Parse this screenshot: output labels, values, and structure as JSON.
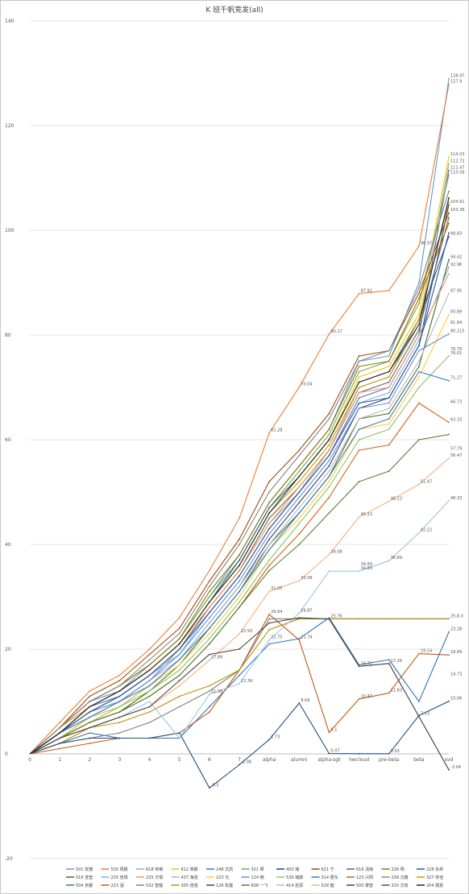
{
  "chart_data": {
    "type": "line",
    "title": "K 班千帆竞发(all)",
    "xlabel": "",
    "ylabel": "",
    "categories": [
      "0",
      "1",
      "2",
      "3",
      "4",
      "5",
      "6",
      "7",
      "alpha",
      "alumni",
      "alpha-sgt",
      "hwcloud",
      "pre-beta",
      "beta",
      "svd"
    ],
    "ylim": [
      -20,
      140
    ],
    "yticks": [
      -20,
      0,
      20,
      40,
      60,
      80,
      100,
      120,
      140
    ],
    "grid": true,
    "legend_position": "bottom",
    "series": [
      {
        "name": "501 安捷",
        "color": "#5b9bd5",
        "values": [
          0,
          5,
          10,
          12,
          17,
          22,
          30,
          38,
          48,
          55,
          62,
          75,
          76,
          90,
          128.97
        ]
      },
      {
        "name": "530 周鹏",
        "color": "#ed7d31",
        "values": [
          0,
          6,
          12,
          15,
          20,
          26,
          35,
          45,
          61.28,
          70.04,
          80.17,
          87.92,
          88.5,
          96.97,
          127.9
        ]
      },
      {
        "name": "618 林琳",
        "color": "#a5a5a5",
        "values": [
          0,
          4,
          8,
          10,
          14,
          20,
          28,
          35,
          44,
          50,
          58,
          70,
          72,
          82,
          112.72
        ]
      },
      {
        "name": "612 章鹏",
        "color": "#ffc000",
        "values": [
          0,
          5,
          9,
          12,
          16,
          21,
          29,
          36,
          46,
          53,
          60,
          72,
          74,
          84,
          114.03
        ]
      },
      {
        "name": "248 文凯",
        "color": "#4472c4",
        "values": [
          0,
          4,
          9,
          11,
          15,
          20,
          27,
          34,
          43,
          50,
          57,
          68,
          70,
          80,
          111.47
        ]
      },
      {
        "name": "321 颖",
        "color": "#70ad47",
        "values": [
          0,
          5,
          10,
          13,
          17,
          22,
          30,
          37,
          47,
          54,
          61,
          73,
          75,
          86,
          110.56
        ]
      },
      {
        "name": "403 瑞",
        "color": "#264478",
        "values": [
          0,
          3,
          7,
          9,
          13,
          18,
          25,
          32,
          41,
          48,
          55,
          66,
          68,
          78,
          104.91
        ]
      },
      {
        "name": "621 宁",
        "color": "#9e480e",
        "values": [
          0,
          5,
          11,
          14,
          19,
          24,
          33,
          41,
          52,
          58,
          65,
          76,
          77,
          88,
          103.36
        ]
      },
      {
        "name": "616 清雨",
        "color": "#636363",
        "values": [
          0,
          4,
          8,
          11,
          15,
          20,
          28,
          35,
          45,
          51,
          58,
          69,
          71,
          81,
          102.45
        ]
      },
      {
        "name": "226 明",
        "color": "#997300",
        "values": [
          0,
          5,
          10,
          13,
          17,
          22,
          31,
          38,
          48,
          55,
          62,
          74,
          75,
          87,
          101.38
        ]
      },
      {
        "name": "228 永林",
        "color": "#255e91",
        "values": [
          0,
          4,
          9,
          12,
          16,
          21,
          29,
          37,
          47,
          53,
          60,
          71,
          73,
          83,
          98.83
        ]
      },
      {
        "name": "516 佳莹",
        "color": "#43682b",
        "values": [
          0,
          3,
          6,
          8,
          12,
          17,
          24,
          31,
          40,
          46,
          53,
          64,
          65,
          74,
          94.42
        ]
      },
      {
        "name": "225 佳琪",
        "color": "#7cafdd",
        "values": [
          0,
          4,
          8,
          11,
          15,
          19,
          27,
          34,
          43,
          50,
          57,
          67,
          69,
          79,
          92.96
        ]
      },
      {
        "name": "225 方琪",
        "color": "#f1975a",
        "values": [
          0,
          5,
          9,
          12,
          16,
          21,
          28,
          35,
          44,
          51,
          58,
          69,
          70,
          80,
          91.73
        ]
      },
      {
        "name": "437 海强",
        "color": "#b7b7b7",
        "values": [
          0,
          4,
          7,
          10,
          14,
          18,
          25,
          32,
          40,
          47,
          54,
          64,
          66,
          75,
          87.95
        ]
      },
      {
        "name": "223 元",
        "color": "#ffcd33",
        "values": [
          0,
          3,
          7,
          9,
          13,
          17,
          23,
          30,
          39,
          45,
          52,
          62,
          63,
          72,
          83.89
        ]
      },
      {
        "name": "124 楠",
        "color": "#698ed0",
        "values": [
          0,
          4,
          8,
          10,
          14,
          19,
          26,
          33,
          42,
          49,
          56,
          66,
          67,
          77,
          80.215
        ]
      },
      {
        "name": "539 瑞康",
        "color": "#8cc168",
        "values": [
          0,
          3,
          6,
          9,
          12,
          16,
          22,
          29,
          37,
          44,
          51,
          60,
          62,
          70,
          76.01
        ]
      },
      {
        "name": "314 晋东",
        "color": "#327dc2",
        "values": [
          0,
          4,
          7,
          10,
          13,
          18,
          24,
          31,
          39,
          46,
          53,
          62,
          64,
          73,
          71.27
        ]
      },
      {
        "name": "123 兴阳",
        "color": "#d26012",
        "values": [
          0,
          3,
          6,
          8,
          11,
          15,
          21,
          28,
          36,
          42,
          49,
          58,
          59,
          67,
          63.33
        ]
      },
      {
        "name": "209 汉鑫",
        "color": "#848484",
        "values": [
          0,
          5,
          10,
          13,
          18,
          23,
          32,
          40,
          50,
          57,
          64,
          75,
          77,
          89,
          107.49
        ]
      },
      {
        "name": "327 依佳",
        "color": "#cc9a00",
        "values": [
          0,
          4,
          9,
          12,
          16,
          21,
          29,
          36,
          46,
          52,
          59,
          70,
          72,
          83,
          105.42
        ]
      },
      {
        "name": "504 京都",
        "color": "#2e75b6",
        "values": [
          0,
          2,
          4,
          3,
          3,
          3,
          9,
          15,
          21,
          22,
          26,
          17,
          18,
          10,
          23.28
        ]
      },
      {
        "name": "223 涵",
        "color": "#c55a11",
        "values": [
          0,
          1,
          2,
          3,
          3,
          4,
          8,
          16,
          26.64,
          21.74,
          4.1,
          10.47,
          11.63,
          19.14,
          18.89
        ]
      },
      {
        "name": "532 智健",
        "color": "#7f7f7f",
        "values": [
          0,
          2,
          3,
          4,
          6,
          9,
          12,
          16,
          25.8,
          25.8,
          25.8,
          25.8,
          25.8,
          25.8,
          25.8
        ]
      },
      {
        "name": "305 倍强",
        "color": "#bf8f00",
        "values": [
          0,
          2,
          5,
          6,
          8,
          11,
          13,
          16,
          23.73,
          25.8,
          25.8,
          25.8,
          25.8,
          25.8,
          25.8
        ]
      },
      {
        "name": "126 松健",
        "color": "#1f4e79",
        "values": [
          0,
          2,
          3,
          3,
          3,
          4,
          -6.5,
          -2.08,
          2.73,
          9.69,
          0.07,
          0.03,
          0.03,
          7.31,
          10.06
        ]
      },
      {
        "name": "608 一飞",
        "color": "#548235",
        "values": [
          0,
          3,
          6,
          8,
          11,
          15,
          21,
          28,
          35,
          40,
          46,
          52,
          54,
          60,
          61.01
        ]
      },
      {
        "name": "414 岩源",
        "color": "#9dc3e6",
        "values": [
          0,
          3,
          5,
          7,
          10,
          3,
          11.38,
          13.39,
          21.75,
          26.87,
          34.89,
          34.89,
          36.89,
          42.22,
          48.33
        ]
      },
      {
        "name": "528 健",
        "color": "#f4b183",
        "values": [
          0,
          3,
          5,
          7,
          9,
          13,
          17.89,
          22.93,
          31.05,
          33.08,
          38.08,
          45.23,
          48.23,
          51.47,
          56.47
        ]
      },
      {
        "name": "505 泰智",
        "color": "#404040",
        "values": [
          0,
          3,
          5,
          7,
          9,
          14,
          19,
          20,
          25,
          26,
          25.76,
          16.72,
          17.26,
          7.13,
          -3.04
        ]
      },
      {
        "name": "325 文俊",
        "color": "#2f5597",
        "values": [
          0,
          4,
          8,
          11,
          15,
          20,
          27,
          34,
          43,
          50,
          57,
          67,
          68,
          78,
          99.53
        ]
      },
      {
        "name": "204 斌豪",
        "color": "#262626",
        "values": [
          0,
          4,
          9,
          12,
          16,
          21,
          29,
          36,
          46,
          53,
          60,
          71,
          73,
          82,
          106.2
        ]
      }
    ],
    "data_labels": [
      "128.97",
      "127.9",
      "114.03",
      "112.72",
      "111.47",
      "110.56",
      "104.91",
      "103.36",
      "98.83",
      "94.42",
      "92.96",
      "87.95",
      "83.89",
      "80.215",
      "76.01",
      "71.27",
      "63.33",
      "61.28",
      "70.04",
      "80.17",
      "87.92",
      "96.97",
      "57.79",
      "66.73",
      "76.79",
      "81.84",
      "25.8 X",
      "23.28",
      "18.89",
      "10.06",
      "-3.04",
      "56.47",
      "48.33",
      "42.22",
      "51.47",
      "48.23",
      "45.23",
      "38.08",
      "34.89",
      "36.89",
      "33.08",
      "31.05",
      "26.64",
      "21.74",
      "14.73",
      "4.1",
      "10.47",
      "11.63",
      "19.14",
      "17.26",
      "16.72",
      "7.13",
      "25.76",
      "9.69",
      "0.07",
      "0.03",
      "2.73",
      "-2.08",
      "-6.5",
      "11.38",
      "13.39",
      "17.89",
      "22.93",
      "21.75",
      "26.87",
      "34.89"
    ]
  }
}
